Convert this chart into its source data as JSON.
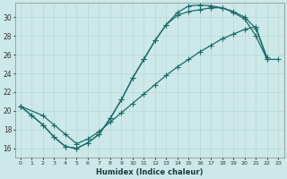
{
  "xlabel": "Humidex (Indice chaleur)",
  "bg_color": "#cce8e8",
  "line_color": "#1a6b6b",
  "grid_color": "#b8d8d8",
  "xlim": [
    -0.5,
    23.5
  ],
  "ylim": [
    15.0,
    31.5
  ],
  "xticks": [
    0,
    1,
    2,
    3,
    4,
    5,
    6,
    7,
    8,
    9,
    10,
    11,
    12,
    13,
    14,
    15,
    16,
    17,
    18,
    19,
    20,
    21,
    22,
    23
  ],
  "yticks": [
    16,
    18,
    20,
    22,
    24,
    26,
    28,
    30
  ],
  "curve1_x": [
    0,
    1,
    2,
    3,
    4,
    5,
    6,
    7,
    8,
    9,
    10,
    11,
    12,
    13,
    14,
    15,
    16,
    17,
    18,
    19,
    20,
    21,
    22
  ],
  "curve1_y": [
    20.5,
    19.5,
    18.5,
    17.2,
    16.2,
    16.0,
    16.6,
    17.5,
    19.2,
    21.2,
    23.5,
    25.5,
    27.5,
    29.2,
    30.5,
    31.2,
    31.3,
    31.2,
    31.0,
    30.6,
    30.0,
    28.8,
    25.7
  ],
  "curve2_x": [
    0,
    1,
    2,
    3,
    4,
    5,
    6,
    7,
    8,
    9,
    10,
    11,
    12,
    13,
    14,
    15,
    16,
    17,
    18,
    19,
    20,
    21,
    22
  ],
  "curve2_y": [
    20.5,
    19.5,
    18.5,
    17.2,
    16.2,
    16.0,
    16.6,
    17.5,
    19.2,
    21.2,
    23.5,
    25.5,
    27.5,
    29.2,
    30.2,
    30.6,
    30.8,
    31.0,
    31.0,
    30.5,
    29.8,
    28.0,
    25.5
  ],
  "curve3_x": [
    0,
    2,
    3,
    4,
    5,
    6,
    7,
    8,
    9,
    10,
    11,
    12,
    13,
    14,
    15,
    16,
    17,
    18,
    19,
    20,
    21,
    22,
    23
  ],
  "curve3_y": [
    20.5,
    19.5,
    18.5,
    17.5,
    16.5,
    17.0,
    17.8,
    18.8,
    19.8,
    20.8,
    21.8,
    22.8,
    23.8,
    24.7,
    25.5,
    26.3,
    27.0,
    27.7,
    28.2,
    28.7,
    29.0,
    25.5,
    25.5
  ]
}
